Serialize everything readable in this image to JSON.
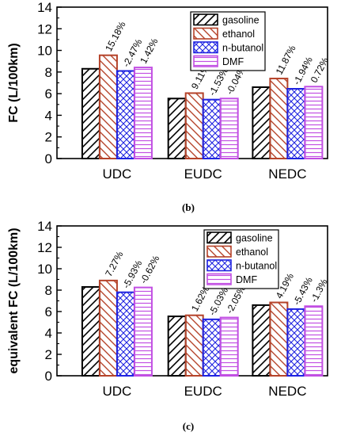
{
  "colors": {
    "gasoline": "#000000",
    "ethanol": "#b5432a",
    "n-butanol": "#1f23e0",
    "DMF": "#c24fe3"
  },
  "chart_data": [
    {
      "type": "bar",
      "caption": "(b)",
      "ylabel": "FC (L/100km)",
      "ylim": [
        0,
        14
      ],
      "yticks": [
        0,
        2,
        4,
        6,
        8,
        10,
        12,
        14
      ],
      "categories": [
        "UDC",
        "EUDC",
        "NEDC"
      ],
      "legend_position": "top-right",
      "series": [
        {
          "name": "gasoline",
          "pattern": "diagonal-up",
          "values": [
            8.3,
            5.55,
            6.6
          ],
          "labels": [
            "",
            "",
            ""
          ]
        },
        {
          "name": "ethanol",
          "pattern": "diagonal-down",
          "values": [
            9.55,
            6.05,
            7.4
          ],
          "labels": [
            "15.18%",
            "9.11%",
            "11.87%"
          ]
        },
        {
          "name": "n-butanol",
          "pattern": "crosshatch",
          "values": [
            8.1,
            5.45,
            6.45
          ],
          "labels": [
            "-2.47%",
            "-1.53%",
            "-1.94%"
          ]
        },
        {
          "name": "DMF",
          "pattern": "horizontal",
          "values": [
            8.42,
            5.55,
            6.65
          ],
          "labels": [
            "1.42%",
            "-0.04%",
            "0.72%"
          ]
        }
      ]
    },
    {
      "type": "bar",
      "caption": "(c)",
      "ylabel": "equivalent FC (L/100km)",
      "ylim": [
        0,
        14
      ],
      "yticks": [
        0,
        2,
        4,
        6,
        8,
        10,
        12,
        14
      ],
      "categories": [
        "UDC",
        "EUDC",
        "NEDC"
      ],
      "legend_position": "top-right",
      "series": [
        {
          "name": "gasoline",
          "pattern": "diagonal-up",
          "values": [
            8.3,
            5.55,
            6.6
          ],
          "labels": [
            "",
            "",
            ""
          ]
        },
        {
          "name": "ethanol",
          "pattern": "diagonal-down",
          "values": [
            8.9,
            5.65,
            6.85
          ],
          "labels": [
            "7.27%",
            "1.62%",
            "4.19%"
          ]
        },
        {
          "name": "n-butanol",
          "pattern": "crosshatch",
          "values": [
            7.8,
            5.27,
            6.23
          ],
          "labels": [
            "-5.93%",
            "-5.03%",
            "-5.43%"
          ]
        },
        {
          "name": "DMF",
          "pattern": "horizontal",
          "values": [
            8.25,
            5.44,
            6.5
          ],
          "labels": [
            "-0.62%",
            "-2.05%",
            "-1.3%"
          ]
        }
      ]
    }
  ]
}
